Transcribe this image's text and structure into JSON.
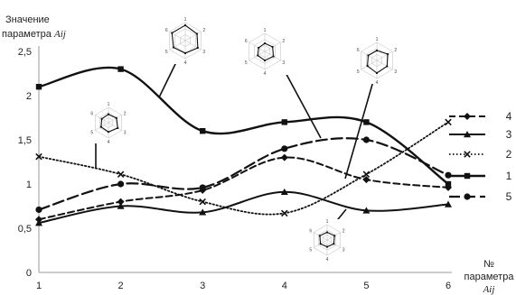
{
  "chart_data": {
    "type": "line",
    "ylabel_line1": "Значение",
    "ylabel_line2_prefix": "параметра ",
    "ylabel_var": "Aij",
    "xlabel_line1": "№",
    "xlabel_line2": "параметра",
    "xlabel_var": "Aij",
    "x": [
      1,
      2,
      3,
      4,
      5,
      6
    ],
    "x_tick_labels": [
      "1",
      "2",
      "3",
      "4",
      "5",
      "6"
    ],
    "ylim": [
      0,
      2.5
    ],
    "y_tick_labels": [
      "0",
      "0,5",
      "1",
      "1,5",
      "2",
      "2,5"
    ],
    "grid": false,
    "legend_position": "right",
    "series": [
      {
        "name": "4",
        "style": "dashed",
        "marker": "diamond",
        "values": [
          0.6,
          0.8,
          0.93,
          1.3,
          1.05,
          0.96
        ]
      },
      {
        "name": "3",
        "style": "solid",
        "marker": "triangle",
        "values": [
          0.56,
          0.75,
          0.68,
          0.91,
          0.7,
          0.77
        ]
      },
      {
        "name": "2",
        "style": "dotted",
        "marker": "cross",
        "values": [
          1.31,
          1.11,
          0.8,
          0.67,
          1.11,
          1.7
        ]
      },
      {
        "name": "1",
        "style": "solid-thick",
        "marker": "square",
        "values": [
          2.1,
          2.3,
          1.6,
          1.7,
          1.7,
          1.0
        ]
      },
      {
        "name": "5",
        "style": "long-dashed",
        "marker": "circle",
        "values": [
          0.71,
          1.0,
          0.96,
          1.4,
          1.5,
          1.1
        ]
      }
    ],
    "radar_insets": [
      {
        "axis_labels": [
          "1",
          "2",
          "3",
          "4",
          "5",
          "6"
        ]
      },
      {
        "axis_labels": [
          "1",
          "2",
          "3",
          "4",
          "5",
          "6"
        ]
      },
      {
        "axis_labels": [
          "1",
          "2",
          "3",
          "4",
          "5",
          "6"
        ]
      },
      {
        "axis_labels": [
          "1",
          "2",
          "3",
          "4",
          "5",
          "6"
        ]
      },
      {
        "axis_labels": [
          "1",
          "2",
          "3",
          "4",
          "5",
          "6"
        ]
      }
    ]
  }
}
